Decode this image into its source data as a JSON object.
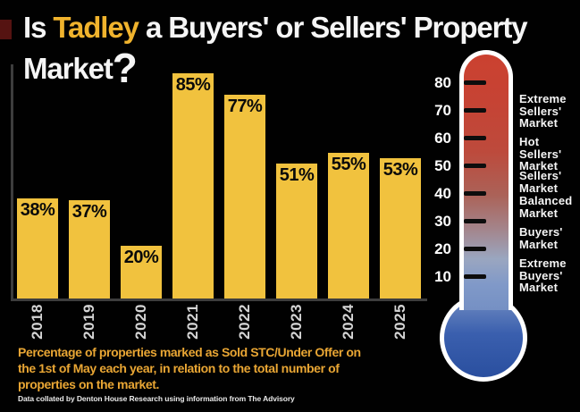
{
  "title": {
    "prefix": "Is ",
    "highlight": "Tadley",
    "rest": " a Buyers' or Sellers' Property",
    "line2": "Market",
    "question_mark": "?"
  },
  "chart_data": {
    "type": "bar",
    "categories": [
      "2018",
      "2019",
      "2020",
      "2021",
      "2022",
      "2023",
      "2024",
      "2025"
    ],
    "values": [
      38,
      37,
      20,
      85,
      77,
      51,
      55,
      53
    ],
    "value_labels": [
      "38%",
      "37%",
      "20%",
      "85%",
      "77%",
      "51%",
      "55%",
      "53%"
    ],
    "title": "Is Tadley a Buyers' or Sellers' Property Market?",
    "xlabel": "",
    "ylabel": "",
    "ylim": [
      0,
      88
    ],
    "grid": false,
    "legend": "none",
    "bar_color": "#f1c23e",
    "value_label_color": "#0a0a0a",
    "axis_color": "#3d3d3d"
  },
  "thermometer": {
    "ticks": [
      80,
      70,
      60,
      50,
      40,
      30,
      20,
      10
    ],
    "zones": [
      {
        "label": "Extreme\nSellers'\nMarket"
      },
      {
        "label": "Hot\nSellers'\nMarket"
      },
      {
        "label": "Sellers'\nMarket"
      },
      {
        "label": "Balanced\nMarket"
      },
      {
        "label": "Buyers'\nMarket"
      },
      {
        "label": "Extreme\nBuyers'\nMarket"
      }
    ],
    "top_color": "#cb4130",
    "bottom_color": "#2a4f9f"
  },
  "caption": {
    "text": "Percentage of properties marked as Sold STC/Under Offer on\nthe 1st of May each year, in relation to the total number of\nproperties on the market."
  },
  "source": "Data collated by Denton House Research using information from The Advisory",
  "colors": {
    "background": "#010101",
    "title_white": "#f5f5f5",
    "title_gold": "#f0b32d",
    "caption_gold": "#e9a634",
    "year_label": "#d4d4d4",
    "accent_red": "#551311"
  }
}
